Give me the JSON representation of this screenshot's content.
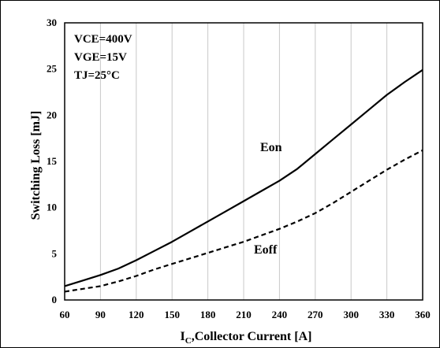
{
  "chart_data": {
    "type": "line",
    "xlabel_main": "I",
    "xlabel_sub": "C",
    "xlabel_rest": ",Collector Current [A]",
    "ylabel": "Switching Loss [mJ]",
    "xlim": [
      60,
      360
    ],
    "ylim": [
      0,
      30
    ],
    "xticks": [
      60,
      90,
      120,
      150,
      180,
      210,
      240,
      270,
      300,
      330,
      360
    ],
    "yticks": [
      0,
      5,
      10,
      15,
      20,
      25,
      30
    ],
    "grid": "vertical",
    "conditions": [
      "VCE=400V",
      "VGE=15V",
      "TJ=25°C"
    ],
    "series": [
      {
        "name": "Eon",
        "style": "solid",
        "x": [
          60,
          75,
          90,
          105,
          120,
          135,
          150,
          165,
          180,
          195,
          210,
          225,
          240,
          255,
          270,
          285,
          300,
          315,
          330,
          345,
          360
        ],
        "y": [
          1.5,
          2.1,
          2.7,
          3.4,
          4.3,
          5.3,
          6.3,
          7.4,
          8.5,
          9.6,
          10.7,
          11.8,
          12.9,
          14.2,
          15.8,
          17.4,
          19.0,
          20.6,
          22.2,
          23.6,
          24.9
        ]
      },
      {
        "name": "Eoff",
        "style": "dashed",
        "x": [
          60,
          75,
          90,
          105,
          120,
          135,
          150,
          165,
          180,
          195,
          210,
          225,
          240,
          255,
          270,
          285,
          300,
          315,
          330,
          345,
          360
        ],
        "y": [
          0.9,
          1.2,
          1.5,
          2.0,
          2.6,
          3.3,
          3.9,
          4.5,
          5.1,
          5.7,
          6.3,
          7.0,
          7.7,
          8.5,
          9.4,
          10.5,
          11.7,
          12.9,
          14.1,
          15.2,
          16.2
        ]
      }
    ]
  }
}
